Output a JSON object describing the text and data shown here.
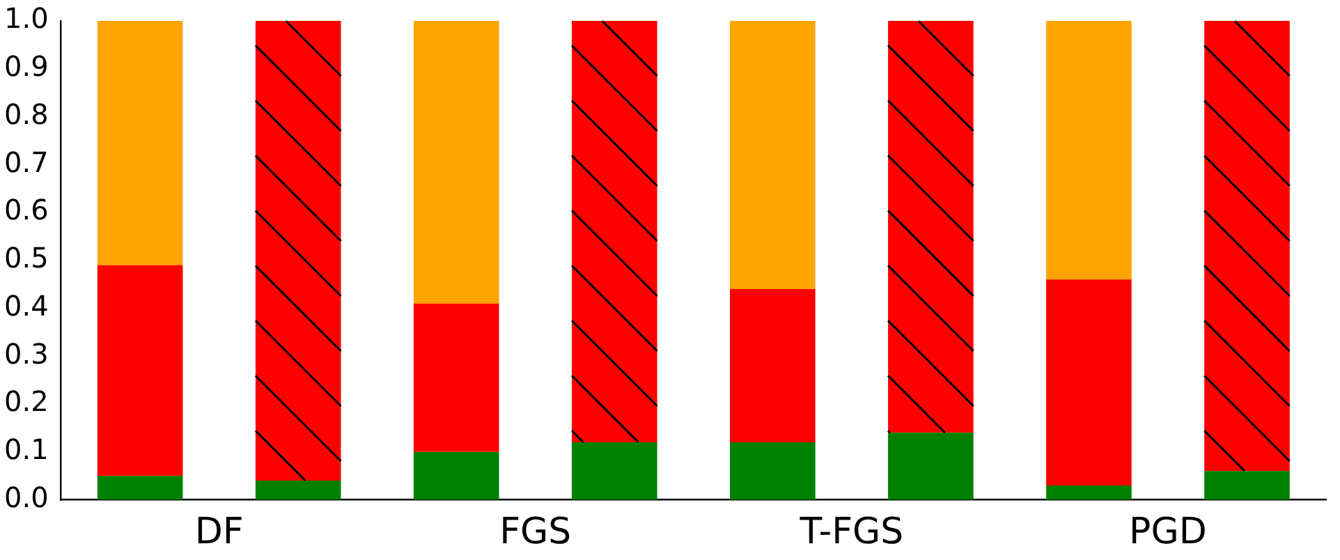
{
  "chart_data": {
    "type": "bar",
    "stacked": true,
    "categories": [
      "DF",
      null,
      "FGS",
      null,
      "T-FGS",
      null,
      "PGD",
      null
    ],
    "series": [
      {
        "color": "#008000",
        "values": [
          0.05,
          null,
          0.1,
          null,
          0.12,
          null,
          0.03,
          null
        ]
      },
      {
        "color": "#ff0000",
        "values": [
          0.44,
          null,
          0.31,
          null,
          0.32,
          null,
          0.43,
          null
        ]
      },
      {
        "color": "#ffa500",
        "values": [
          0.51,
          null,
          0.59,
          null,
          0.56,
          null,
          0.54,
          null
        ]
      },
      {
        "color": "#008000",
        "values": [
          null,
          0.04,
          null,
          0.12,
          null,
          0.14,
          null,
          0.06
        ]
      },
      {
        "color": "#ff0000",
        "values": [
          null,
          0.96,
          null,
          0.88,
          null,
          0.86,
          null,
          0.94
        ]
      }
    ],
    "ylim": [
      0,
      1.0
    ],
    "yticks": [
      {
        "value": 0,
        "label": "0.0"
      },
      {
        "value": 0.1,
        "label": "0.1"
      },
      {
        "value": 0.2,
        "label": "0.2"
      },
      {
        "value": 0.3,
        "label": "0.3"
      },
      {
        "value": 0.4,
        "label": "0.4"
      },
      {
        "value": 0.5,
        "label": "0.5"
      },
      {
        "value": 0.6,
        "label": "0.6"
      },
      {
        "value": 0.7,
        "label": "0.7"
      },
      {
        "value": 0.8,
        "label": "0.8"
      },
      {
        "value": 0.9,
        "label": "0.9"
      },
      {
        "value": 1.0,
        "label": "1.0"
      }
    ],
    "grid": false,
    "legend": false
  }
}
